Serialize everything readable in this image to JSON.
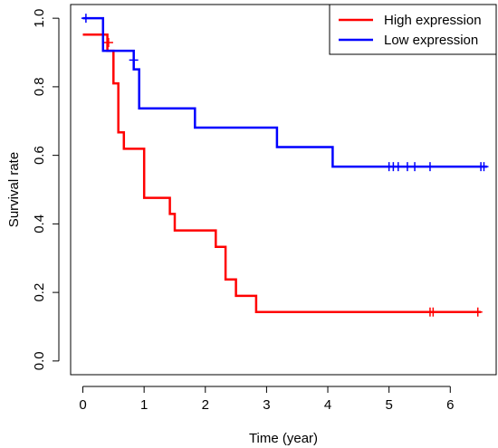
{
  "chart_data": {
    "type": "line",
    "step": true,
    "xlabel": "Time (year)",
    "ylabel": "Survival rate",
    "xlim": [
      -0.2,
      6.75
    ],
    "ylim": [
      -0.04,
      1.04
    ],
    "xticks": [
      0,
      1,
      2,
      3,
      4,
      5,
      6
    ],
    "yticks": [
      0.0,
      0.2,
      0.4,
      0.6,
      0.8,
      1.0
    ],
    "ytick_labels": [
      "0.0",
      "0.2",
      "0.4",
      "0.6",
      "0.8",
      "1.0"
    ],
    "grid": false,
    "legend_placement": "top-right",
    "series": [
      {
        "name": "High expression",
        "color": "#ff0000",
        "points": [
          [
            0.0,
            0.952
          ],
          [
            0.4,
            0.952
          ],
          [
            0.4,
            0.905
          ],
          [
            0.5,
            0.905
          ],
          [
            0.5,
            0.81
          ],
          [
            0.58,
            0.81
          ],
          [
            0.58,
            0.667
          ],
          [
            0.67,
            0.667
          ],
          [
            0.67,
            0.619
          ],
          [
            1.0,
            0.619
          ],
          [
            1.0,
            0.476
          ],
          [
            1.42,
            0.476
          ],
          [
            1.42,
            0.429
          ],
          [
            1.5,
            0.429
          ],
          [
            1.5,
            0.381
          ],
          [
            2.17,
            0.381
          ],
          [
            2.17,
            0.333
          ],
          [
            2.33,
            0.333
          ],
          [
            2.33,
            0.238
          ],
          [
            2.5,
            0.238
          ],
          [
            2.5,
            0.19
          ],
          [
            2.83,
            0.19
          ],
          [
            2.83,
            0.143
          ],
          [
            6.5,
            0.143
          ]
        ],
        "censor_x": [
          0.42,
          5.67,
          5.72,
          6.45
        ],
        "censor_y": [
          0.929,
          0.143,
          0.143,
          0.143
        ]
      },
      {
        "name": "Low expression",
        "color": "#0000ff",
        "points": [
          [
            0.0,
            1.0
          ],
          [
            0.33,
            1.0
          ],
          [
            0.33,
            0.905
          ],
          [
            0.83,
            0.905
          ],
          [
            0.83,
            0.851
          ],
          [
            0.92,
            0.851
          ],
          [
            0.92,
            0.737
          ],
          [
            1.83,
            0.737
          ],
          [
            1.83,
            0.681
          ],
          [
            3.17,
            0.681
          ],
          [
            3.17,
            0.624
          ],
          [
            4.08,
            0.624
          ],
          [
            4.08,
            0.567
          ],
          [
            6.6,
            0.567
          ]
        ],
        "censor_x": [
          0.05,
          0.83,
          5.0,
          5.07,
          5.15,
          5.3,
          5.42,
          5.67,
          6.5,
          6.55
        ],
        "censor_y": [
          1.0,
          0.878,
          0.567,
          0.567,
          0.567,
          0.567,
          0.567,
          0.567,
          0.567,
          0.567
        ]
      }
    ]
  }
}
